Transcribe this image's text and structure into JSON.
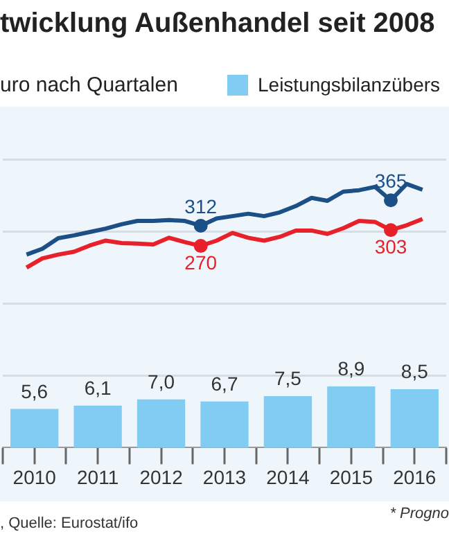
{
  "chart_data": {
    "type": "bar",
    "title": "twicklung Außenhandel seit 2008",
    "subtitle": "uro nach Quartalen",
    "series": [
      {
        "name": "Leistungsbilanzübers",
        "color": "#80ccf2",
        "axis": "y2",
        "x": [
          2010,
          2011,
          2012,
          2013,
          2014,
          2015,
          2016
        ],
        "values": [
          5.6,
          6.1,
          7.0,
          6.7,
          7.5,
          8.9,
          8.5
        ],
        "value_labels": [
          "5,6",
          "6,1",
          "7,0",
          "6,7",
          "7,5",
          "8,9",
          "8,5"
        ]
      },
      {
        "type": "line",
        "color": "#1b4f85",
        "x": [
          2009.875,
          2010.125,
          2010.375,
          2010.625,
          2010.875,
          2011.125,
          2011.375,
          2011.625,
          2011.875,
          2012.125,
          2012.375,
          2012.625,
          2012.875,
          2013.125,
          2013.375,
          2013.625,
          2013.875,
          2014.125,
          2014.375,
          2014.625,
          2014.875,
          2015.125,
          2015.375,
          2015.625,
          2015.875,
          2016.125
        ],
        "values": [
          252,
          264,
          286,
          292,
          299,
          306,
          315,
          322,
          322,
          324,
          322,
          312,
          327,
          332,
          337,
          332,
          340,
          353,
          370,
          364,
          383,
          386,
          393,
          365,
          399,
          387
        ],
        "value_labels": [
          null,
          null,
          null,
          null,
          null,
          null,
          null,
          null,
          null,
          null,
          null,
          "312",
          null,
          null,
          null,
          null,
          null,
          null,
          null,
          null,
          null,
          null,
          null,
          "365",
          null,
          null
        ]
      },
      {
        "type": "line",
        "color": "#e8202a",
        "x": [
          2009.875,
          2010.125,
          2010.375,
          2010.625,
          2010.875,
          2011.125,
          2011.375,
          2011.625,
          2011.875,
          2012.125,
          2012.375,
          2012.625,
          2012.875,
          2013.125,
          2013.375,
          2013.625,
          2013.875,
          2014.125,
          2014.375,
          2014.625,
          2014.875,
          2015.125,
          2015.375,
          2015.625,
          2015.875,
          2016.125
        ],
        "values": [
          225,
          244,
          252,
          258,
          271,
          281,
          276,
          275,
          273,
          287,
          278,
          270,
          281,
          297,
          287,
          281,
          289,
          302,
          302,
          295,
          307,
          322,
          320,
          303,
          313,
          326
        ],
        "value_labels": [
          null,
          null,
          null,
          null,
          null,
          null,
          null,
          null,
          null,
          null,
          null,
          "270",
          null,
          null,
          null,
          null,
          null,
          null,
          null,
          null,
          null,
          null,
          null,
          "303",
          null,
          null
        ]
      }
    ],
    "xlim": [
      2009.5,
      2016.5
    ],
    "xticks": [
      {
        "value": 2009.5,
        "label": null
      },
      2010,
      {
        "value": 2010.5,
        "label": null
      },
      2011,
      {
        "value": 2011.5,
        "label": null
      },
      2012,
      {
        "value": 2012.5,
        "label": null
      },
      2013,
      {
        "value": 2013.5,
        "label": null
      },
      2014,
      {
        "value": 2014.5,
        "label": null
      },
      2015,
      {
        "value": 2015.5,
        "label": null
      },
      2016,
      {
        "value": 2016.5,
        "label": null
      }
    ],
    "ylim": [
      -150,
      560
    ],
    "yticks": [
      {
        "value": 0,
        "label": null
      },
      {
        "value": 150,
        "label": null
      },
      {
        "value": 300,
        "label": null
      },
      {
        "value": 450,
        "label": null
      }
    ],
    "grid": "y",
    "tick_labels": "x",
    "legend": "top right",
    "annotations": [
      ", Quelle: Eurostat/ifo",
      "* Progno"
    ]
  }
}
